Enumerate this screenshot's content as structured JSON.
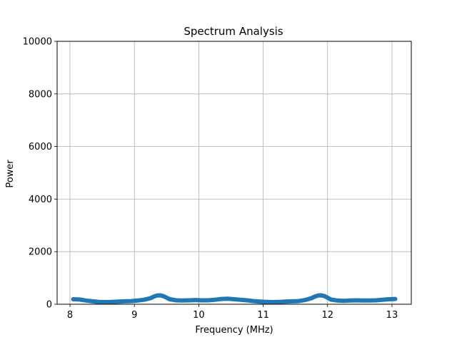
{
  "chart_data": {
    "type": "line",
    "title": "Spectrum Analysis",
    "xlabel": "Frequency (MHz)",
    "ylabel": "Power",
    "xlim": [
      7.8,
      13.3
    ],
    "ylim": [
      0,
      10000
    ],
    "xticks": [
      8,
      9,
      10,
      11,
      12,
      13
    ],
    "yticks": [
      0,
      2000,
      4000,
      6000,
      8000,
      10000
    ],
    "grid": true,
    "series_color": "#1f77b4",
    "grid_color": "#b0b0b0",
    "series": [
      {
        "x": [
          8.05,
          8.15,
          8.25,
          8.35,
          8.45,
          8.55,
          8.65,
          8.75,
          8.85,
          8.95,
          9.05,
          9.15,
          9.25,
          9.3,
          9.35,
          9.4,
          9.45,
          9.5,
          9.55,
          9.65,
          9.75,
          9.85,
          9.95,
          10.05,
          10.15,
          10.25,
          10.35,
          10.45,
          10.55,
          10.65,
          10.75,
          10.85,
          10.95,
          11.05,
          11.15,
          11.25,
          11.35,
          11.45,
          11.55,
          11.65,
          11.75,
          11.8,
          11.85,
          11.9,
          11.95,
          12.0,
          12.05,
          12.15,
          12.25,
          12.35,
          12.45,
          12.55,
          12.65,
          12.75,
          12.85,
          12.95,
          13.05
        ],
        "y": [
          190,
          180,
          140,
          110,
          90,
          80,
          90,
          100,
          110,
          120,
          140,
          170,
          230,
          290,
          330,
          340,
          310,
          250,
          190,
          150,
          140,
          150,
          160,
          150,
          150,
          170,
          200,
          210,
          190,
          170,
          150,
          120,
          100,
          90,
          80,
          90,
          100,
          110,
          120,
          160,
          230,
          290,
          330,
          340,
          310,
          250,
          180,
          140,
          130,
          140,
          150,
          140,
          140,
          150,
          170,
          190,
          200
        ]
      }
    ]
  }
}
